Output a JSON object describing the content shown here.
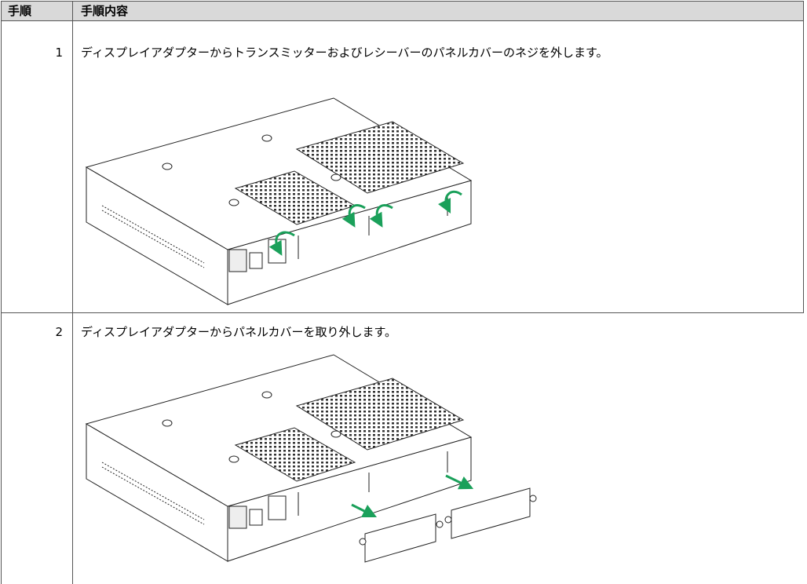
{
  "table": {
    "header": [
      "手順",
      "手順内容"
    ],
    "rows": [
      [
        "1",
        "ディスプレイアダプターからトランスミッターおよびレシーバーのパネルカバーのネジを外します。"
      ],
      [
        "2",
        "ディスプレイアダプターからパネルカバーを取り外します。"
      ]
    ]
  }
}
